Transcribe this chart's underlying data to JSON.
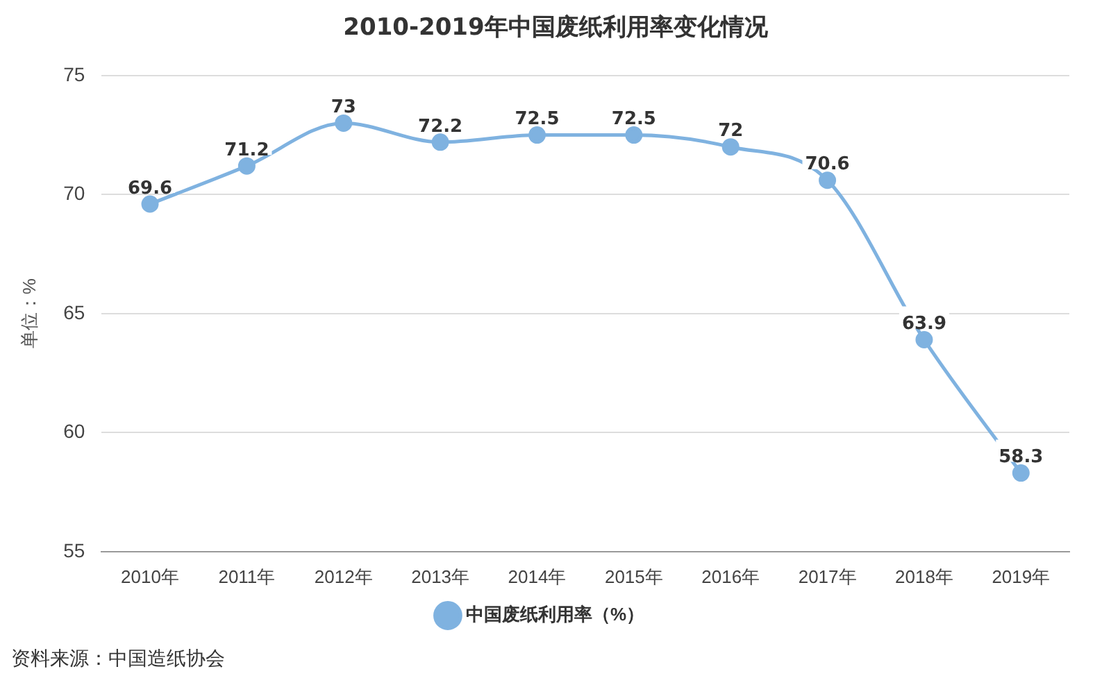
{
  "chart_data": {
    "type": "line",
    "title": "2010-2019年中国废纸利用率变化情况",
    "ylabel": "单位：%",
    "categories": [
      "2010年",
      "2011年",
      "2012年",
      "2013年",
      "2014年",
      "2015年",
      "2016年",
      "2017年",
      "2018年",
      "2019年"
    ],
    "series": [
      {
        "name": "中国废纸利用率（%）",
        "color": "#7fb2e0",
        "values": [
          69.6,
          71.2,
          73,
          72.2,
          72.5,
          72.5,
          72,
          70.6,
          63.9,
          58.3
        ]
      }
    ],
    "ylim": [
      55,
      75
    ],
    "yticks": [
      55,
      60,
      65,
      70,
      75
    ],
    "grid": "y",
    "legend": "bottom",
    "marker": "circle",
    "line_style": "solid",
    "data_labels": true,
    "annotations": [
      "资料来源：中国造纸协会"
    ]
  }
}
